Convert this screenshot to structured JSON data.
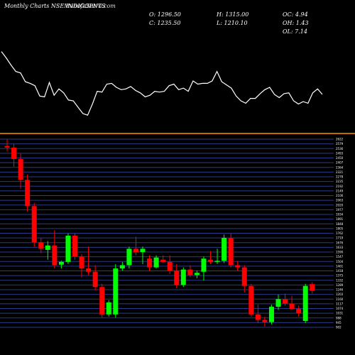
{
  "header": {
    "title": "Monthly Charts NSE INDIGOPNTS",
    "watermark": "MunafaSutra.com",
    "open": "O: 1296.50",
    "close": "C: 1235.50",
    "high": "H: 1315.00",
    "low": "L: 1210.10",
    "oc": "OC: 4.94",
    "oh": "OH: 1.43",
    "ol": "OL: 7.14"
  },
  "colors": {
    "background": "#000000",
    "bullish": "#00ff00",
    "bearish": "#ff0000",
    "divider": "#ff8c00",
    "gridline": "#2a3a8a",
    "indicator": "#ffffff"
  },
  "chart_data": [
    {
      "type": "line",
      "panel": "indicator",
      "values": [
        73,
        81,
        90,
        98,
        100,
        111,
        113,
        116,
        129,
        130,
        112,
        128,
        120,
        125,
        134,
        135,
        143,
        151,
        153,
        139,
        123,
        124,
        114,
        113,
        118,
        121,
        120,
        117,
        122,
        125,
        130,
        128,
        123,
        124,
        123,
        116,
        114,
        121,
        119,
        123,
        110,
        114,
        113,
        113,
        110,
        98,
        111,
        115,
        119,
        129,
        135,
        138,
        132,
        132,
        126,
        121,
        118,
        127,
        131,
        126,
        125,
        135,
        139,
        136,
        138,
        125,
        120,
        127
      ]
    },
    {
      "type": "candlestick",
      "panel": "price",
      "y_ticks": [
        "2622",
        "2579",
        "2536",
        "2493",
        "2450",
        "2407",
        "2364",
        "2321",
        "2278",
        "2235",
        "2192",
        "2149",
        "2106",
        "2063",
        "2020",
        "1977",
        "1934",
        "1891",
        "1848",
        "1805",
        "1762",
        "1719",
        "1676",
        "1633",
        "1590",
        "1547",
        "1504",
        "1461",
        "1418",
        "1375",
        "1332",
        "1289",
        "1246",
        "1203",
        "1160",
        "1117",
        "1074",
        "1031",
        "988",
        "945",
        "902"
      ],
      "ylim": [
        902,
        2622
      ],
      "candles": [
        {
          "open": 2560,
          "high": 2620,
          "low": 2510,
          "close": 2545
        },
        {
          "open": 2545,
          "high": 2580,
          "low": 2370,
          "close": 2440
        },
        {
          "open": 2440,
          "high": 2490,
          "low": 2170,
          "close": 2250
        },
        {
          "open": 2250,
          "high": 2300,
          "low": 1960,
          "close": 2010
        },
        {
          "open": 2010,
          "high": 2040,
          "low": 1640,
          "close": 1680
        },
        {
          "open": 1680,
          "high": 1720,
          "low": 1580,
          "close": 1620
        },
        {
          "open": 1610,
          "high": 1690,
          "low": 1520,
          "close": 1650
        },
        {
          "open": 1650,
          "high": 1790,
          "low": 1440,
          "close": 1470
        },
        {
          "open": 1475,
          "high": 1510,
          "low": 1440,
          "close": 1500
        },
        {
          "open": 1500,
          "high": 1760,
          "low": 1480,
          "close": 1740
        },
        {
          "open": 1740,
          "high": 1760,
          "low": 1520,
          "close": 1550
        },
        {
          "open": 1550,
          "high": 1570,
          "low": 1360,
          "close": 1440
        },
        {
          "open": 1440,
          "high": 1640,
          "low": 1380,
          "close": 1410
        },
        {
          "open": 1410,
          "high": 1470,
          "low": 1240,
          "close": 1270
        },
        {
          "open": 1270,
          "high": 1300,
          "low": 990,
          "close": 1020
        },
        {
          "open": 1020,
          "high": 1150,
          "low": 1000,
          "close": 1130
        },
        {
          "open": 1020,
          "high": 1480,
          "low": 990,
          "close": 1440
        },
        {
          "open": 1440,
          "high": 1500,
          "low": 1420,
          "close": 1470
        },
        {
          "open": 1470,
          "high": 1640,
          "low": 1440,
          "close": 1620
        },
        {
          "open": 1620,
          "high": 1730,
          "low": 1560,
          "close": 1590
        },
        {
          "open": 1590,
          "high": 1640,
          "low": 1480,
          "close": 1620
        },
        {
          "open": 1530,
          "high": 1560,
          "low": 1420,
          "close": 1450
        },
        {
          "open": 1450,
          "high": 1560,
          "low": 1440,
          "close": 1540
        },
        {
          "open": 1520,
          "high": 1560,
          "low": 1490,
          "close": 1500
        },
        {
          "open": 1500,
          "high": 1560,
          "low": 1390,
          "close": 1420
        },
        {
          "open": 1420,
          "high": 1480,
          "low": 1260,
          "close": 1290
        },
        {
          "open": 1290,
          "high": 1450,
          "low": 1270,
          "close": 1430
        },
        {
          "open": 1430,
          "high": 1470,
          "low": 1360,
          "close": 1380
        },
        {
          "open": 1380,
          "high": 1420,
          "low": 1350,
          "close": 1400
        },
        {
          "open": 1410,
          "high": 1550,
          "low": 1330,
          "close": 1530
        },
        {
          "open": 1520,
          "high": 1600,
          "low": 1480,
          "close": 1500
        },
        {
          "open": 1500,
          "high": 1620,
          "low": 1480,
          "close": 1510
        },
        {
          "open": 1510,
          "high": 1750,
          "low": 1490,
          "close": 1720
        },
        {
          "open": 1720,
          "high": 1760,
          "low": 1450,
          "close": 1470
        },
        {
          "open": 1470,
          "high": 1510,
          "low": 1420,
          "close": 1450
        },
        {
          "open": 1450,
          "high": 1470,
          "low": 1220,
          "close": 1280
        },
        {
          "open": 1280,
          "high": 1300,
          "low": 1000,
          "close": 1020
        },
        {
          "open": 1020,
          "high": 1110,
          "low": 940,
          "close": 970
        },
        {
          "open": 970,
          "high": 1000,
          "low": 910,
          "close": 950
        },
        {
          "open": 950,
          "high": 1110,
          "low": 930,
          "close": 1090
        },
        {
          "open": 1090,
          "high": 1200,
          "low": 1060,
          "close": 1160
        },
        {
          "open": 1160,
          "high": 1210,
          "low": 1100,
          "close": 1120
        },
        {
          "open": 1120,
          "high": 1190,
          "low": 1060,
          "close": 1070
        },
        {
          "open": 1070,
          "high": 1100,
          "low": 1000,
          "close": 1030
        },
        {
          "open": 960,
          "high": 1300,
          "low": 940,
          "close": 1280
        },
        {
          "open": 1296.5,
          "high": 1315.0,
          "low": 1210.1,
          "close": 1235.5
        }
      ]
    }
  ]
}
